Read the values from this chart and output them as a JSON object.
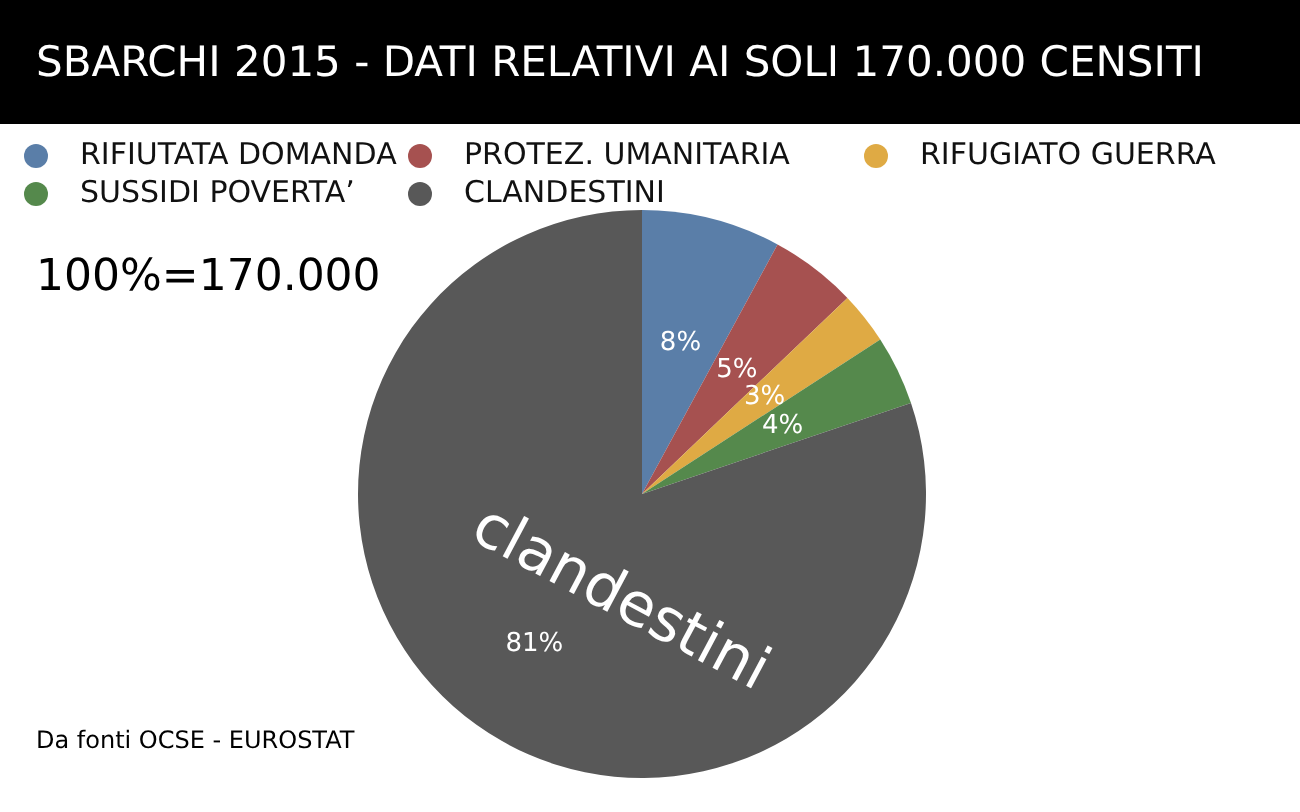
{
  "chart_data": {
    "type": "pie",
    "title": "SBARCHI 2015 - DATI RELATIVI AI SOLI 170.000 CENSITI",
    "categories": [
      "RIFIUTATA DOMANDA",
      "PROTEZ. UMANITARIA",
      "RIFUGIATO GUERRA",
      "SUSSIDI POVERTA’",
      "CLANDESTINI"
    ],
    "values": [
      8,
      5,
      3,
      4,
      81
    ],
    "value_labels": [
      "8%",
      "5%",
      "3%",
      "4%",
      "81%"
    ],
    "colors": [
      "#5a7ea8",
      "#a65150",
      "#dfaa44",
      "#55894c",
      "#585858"
    ],
    "legend": "top",
    "annotations": [
      "100%=170.000",
      "Da fonti OCSE  - EUROSTAT",
      "clandestini"
    ]
  }
}
